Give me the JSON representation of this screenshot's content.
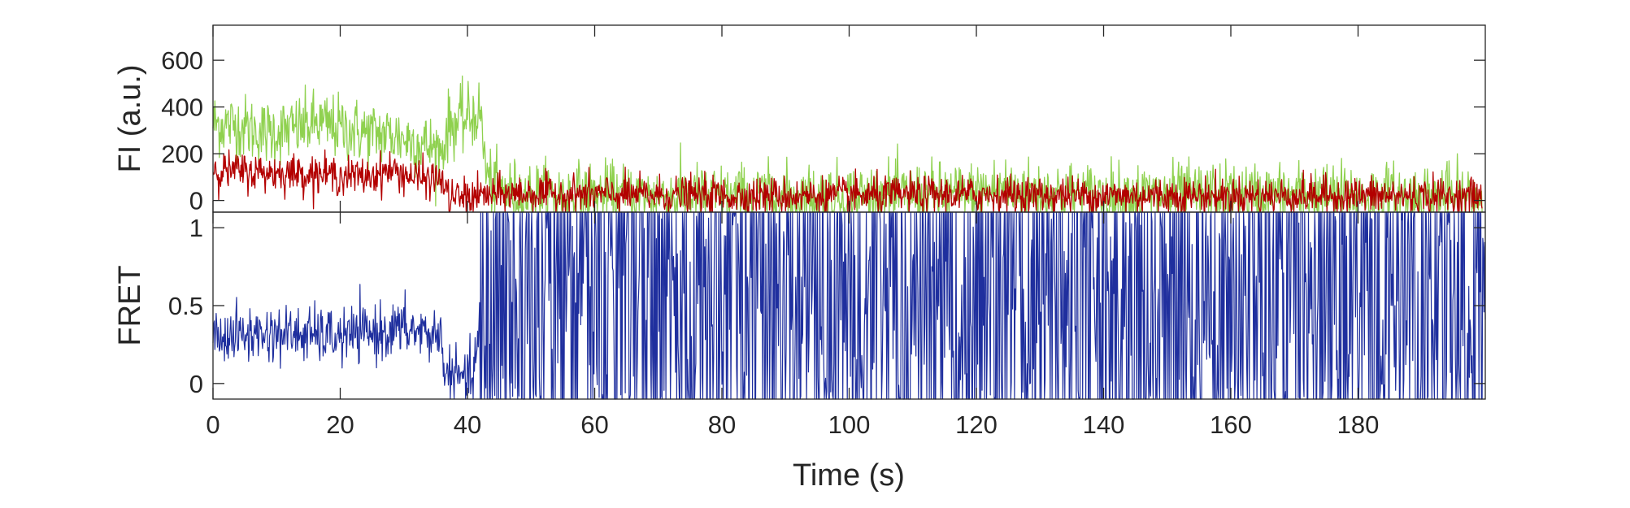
{
  "chart_data": [
    {
      "type": "line",
      "panel": "top",
      "ylabel": "FI (a.u.)",
      "xlabel": "",
      "xlim": [
        0,
        200
      ],
      "ylim": [
        -50,
        750
      ],
      "yticks": [
        0,
        200,
        400,
        600
      ],
      "ytick_labels": [
        "0",
        "200",
        "400",
        "600"
      ],
      "show_xtick_labels": false,
      "grid": false,
      "colors": {
        "donor": "#8fd14f",
        "acceptor": "#b30000"
      },
      "series": [
        {
          "name": "",
          "color": "#8fd14f",
          "x": [
            0,
            4,
            8,
            12,
            16,
            20,
            24,
            28,
            32,
            36,
            37,
            40,
            42,
            43,
            44,
            48,
            60,
            80,
            100,
            120,
            124,
            126,
            140,
            160,
            180,
            199.5
          ],
          "values": [
            330,
            320,
            290,
            300,
            330,
            310,
            290,
            280,
            250,
            210,
            320,
            350,
            380,
            110,
            50,
            30,
            20,
            15,
            18,
            25,
            60,
            40,
            20,
            22,
            20,
            15
          ],
          "noise": 70
        },
        {
          "name": "",
          "color": "#b30000",
          "x": [
            0,
            8,
            16,
            24,
            28,
            32,
            36,
            37,
            42,
            48,
            60,
            80,
            100,
            120,
            140,
            160,
            180,
            199.5
          ],
          "values": [
            130,
            120,
            115,
            100,
            130,
            95,
            90,
            10,
            20,
            30,
            25,
            20,
            20,
            25,
            20,
            20,
            20,
            15
          ],
          "noise": 40
        }
      ]
    },
    {
      "type": "line",
      "panel": "bottom",
      "ylabel": "FRET",
      "xlabel": "Time (s)",
      "xlim": [
        0,
        200
      ],
      "ylim": [
        -0.1,
        1.1
      ],
      "yticks": [
        0,
        0.5,
        1
      ],
      "ytick_labels": [
        "0",
        "0.5",
        "1"
      ],
      "xticks": [
        0,
        20,
        40,
        60,
        80,
        100,
        120,
        140,
        160,
        180
      ],
      "xtick_labels": [
        "0",
        "20",
        "40",
        "60",
        "80",
        "100",
        "120",
        "140",
        "160",
        "180"
      ],
      "grid": false,
      "series": [
        {
          "name": "",
          "color": "#1f2f9e",
          "x": [
            0,
            10,
            20,
            30,
            36,
            36.5,
            41,
            42,
            200
          ],
          "values": [
            0.3,
            0.32,
            0.3,
            0.35,
            0.3,
            0.05,
            0.02,
            0.5,
            0.5
          ],
          "noise_before_42": 0.09,
          "spiky_after": 42
        }
      ]
    }
  ]
}
